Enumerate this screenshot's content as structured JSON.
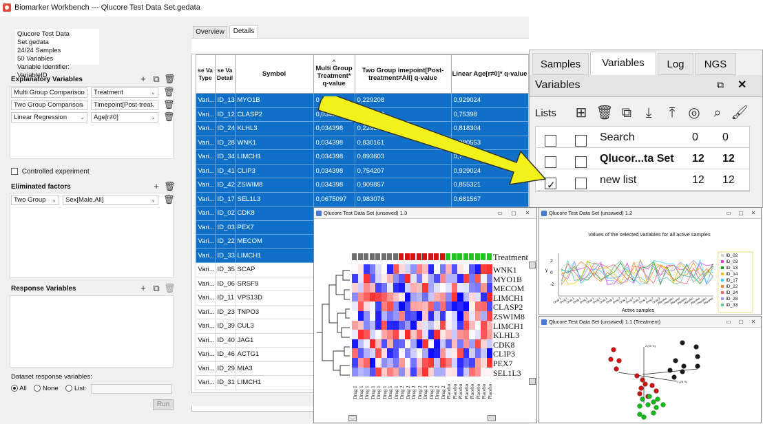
{
  "window": {
    "title": "Biomarker Workbench --- Qlucore Test Data Set.gedata"
  },
  "info": {
    "lines": [
      "Qlucore Test Data Set.gedata",
      "24/24 Samples",
      "50 Variables",
      "Variable Identifier: VariableID"
    ]
  },
  "explanatory": {
    "title": "Explanatory Variables",
    "rows": [
      {
        "test": "Multi Group Comparison",
        "factor": "Treatment"
      },
      {
        "test": "Two Group Comparison",
        "factor": "Timepoint[Post-treat"
      },
      {
        "test": "Linear Regression",
        "factor": "Age[r≠0]"
      }
    ]
  },
  "controlled": {
    "label": "Controlled experiment",
    "checked": false
  },
  "eliminated": {
    "title": "Eliminated factors",
    "test": "Two Group",
    "factor": "Sex[Male,All]"
  },
  "response": {
    "title": "Response Variables"
  },
  "dataset_response": {
    "label": "Dataset response variables:",
    "options": [
      "All",
      "None",
      "List:"
    ],
    "selected": "All"
  },
  "run_label": "Run",
  "tabs": [
    "Overview",
    "Details"
  ],
  "active_tab": "Details",
  "table": {
    "headers": [
      "se Va Type",
      "se Va Detail",
      "Symbol",
      "Multi Group Treatment* q-value",
      "Two Group imepoint[Post-treatment≠All] q-value",
      "Linear Age[r≠0]* q-value"
    ],
    "rows": [
      {
        "type": "Vari...",
        "id": "ID_13",
        "symbol": "MYO1B",
        "q1": "0,034398",
        "q2": "0,229208",
        "q3": "0,929024",
        "sel": true
      },
      {
        "type": "Vari...",
        "id": "ID_12",
        "symbol": "CLASP2",
        "q1": "0,034398",
        "q2": "0,229208",
        "q3": "0,75398",
        "sel": true
      },
      {
        "type": "Vari...",
        "id": "ID_24",
        "symbol": "KLHL3",
        "q1": "0,034398",
        "q2": "0,229208",
        "q3": "0,818304",
        "sel": true
      },
      {
        "type": "Vari...",
        "id": "ID_28",
        "symbol": "WNK1",
        "q1": "0,034398",
        "q2": "0,830161",
        "q3": "0,980553",
        "sel": true
      },
      {
        "type": "Vari...",
        "id": "ID_34",
        "symbol": "LIMCH1",
        "q1": "0,034398",
        "q2": "0,893603",
        "q3": "0,7",
        "sel": true
      },
      {
        "type": "Vari...",
        "id": "ID_41",
        "symbol": "CLIP3",
        "q1": "0,034398",
        "q2": "0,754207",
        "q3": "0,929024",
        "sel": true
      },
      {
        "type": "Vari...",
        "id": "ID_42",
        "symbol": "ZSWIM8",
        "q1": "0,034398",
        "q2": "0,909857",
        "q3": "0,855321",
        "sel": true
      },
      {
        "type": "Vari...",
        "id": "ID_17",
        "symbol": "SEL1L3",
        "q1": "0,0675097",
        "q2": "0,983076",
        "q3": "0,681567",
        "sel": true
      },
      {
        "type": "Vari...",
        "id": "ID_02",
        "symbol": "CDK8",
        "q1": "",
        "q2": "",
        "q3": "",
        "sel": true
      },
      {
        "type": "Vari...",
        "id": "ID_03",
        "symbol": "PEX7",
        "q1": "",
        "q2": "",
        "q3": "",
        "sel": true
      },
      {
        "type": "Vari...",
        "id": "ID_22",
        "symbol": "MECOM",
        "q1": "",
        "q2": "",
        "q3": "",
        "sel": true
      },
      {
        "type": "Vari...",
        "id": "ID_33",
        "symbol": "LIMCH1",
        "q1": "",
        "q2": "",
        "q3": "",
        "sel": true
      },
      {
        "type": "Vari...",
        "id": "ID_35",
        "symbol": "SCAP",
        "q1": "",
        "q2": "",
        "q3": "",
        "sel": false
      },
      {
        "type": "Vari...",
        "id": "ID_06",
        "symbol": "SRSF9",
        "q1": "",
        "q2": "",
        "q3": "",
        "sel": false
      },
      {
        "type": "Vari...",
        "id": "ID_11",
        "symbol": "VPS13D",
        "q1": "",
        "q2": "",
        "q3": "",
        "sel": false
      },
      {
        "type": "Vari...",
        "id": "ID_23",
        "symbol": "TNPO3",
        "q1": "",
        "q2": "",
        "q3": "",
        "sel": false
      },
      {
        "type": "Vari...",
        "id": "ID_39",
        "symbol": "CUL3",
        "q1": "",
        "q2": "",
        "q3": "",
        "sel": false
      },
      {
        "type": "Vari...",
        "id": "ID_40",
        "symbol": "JAG1",
        "q1": "",
        "q2": "",
        "q3": "",
        "sel": false
      },
      {
        "type": "Vari...",
        "id": "ID_46",
        "symbol": "ACTG1",
        "q1": "",
        "q2": "",
        "q3": "",
        "sel": false
      },
      {
        "type": "Vari...",
        "id": "ID_29",
        "symbol": "MIA3",
        "q1": "",
        "q2": "",
        "q3": "",
        "sel": false
      },
      {
        "type": "Vari...",
        "id": "ID_31",
        "symbol": "LIMCH1",
        "q1": "",
        "q2": "",
        "q3": "",
        "sel": false
      }
    ]
  },
  "lists_panel": {
    "tabs": [
      "Samples",
      "Variables",
      "Log",
      "NGS"
    ],
    "active_tab": "Variables",
    "title": "Variables",
    "lists_label": "Lists",
    "icons": [
      "add-list-icon",
      "trash-icon",
      "copy-icon",
      "import-icon",
      "export-icon",
      "venn-icon",
      "search-icon",
      "brush-icon"
    ],
    "rows": [
      {
        "name": "Search",
        "a": "0",
        "b": "0",
        "checked": false,
        "bold": false
      },
      {
        "name": "Qlucor...ta Set",
        "a": "12",
        "b": "12",
        "checked": false,
        "bold": true
      },
      {
        "name": "new list",
        "a": "12",
        "b": "12",
        "checked": true,
        "bold": false
      }
    ]
  },
  "heatmap_window": {
    "title": "Qlucore Test Data Set (unsaved) 1.3",
    "legend_label": "Treatment",
    "genes": [
      "WNK1",
      "MYO1B",
      "MECOM",
      "LIMCH1",
      "CLASP2",
      "ZSWIM8",
      "LIMCH1",
      "KLHL3",
      "CDK8",
      "CLIP3",
      "PEX7",
      "SEL1L3"
    ],
    "samples": [
      "Drug 1",
      "Drug 1",
      "Drug 1",
      "Drug 1",
      "Drug 1",
      "Drug 1",
      "Drug 1",
      "Drug 1",
      "Drug 2",
      "Drug 2",
      "Drug 2",
      "Drug 2",
      "Drug 2",
      "Drug 2",
      "Drug 2",
      "Drug 2",
      "Placebo",
      "Placebo",
      "Placebo",
      "Placebo",
      "Placebo",
      "Placebo",
      "Placebo",
      "Placebo"
    ]
  },
  "line_window": {
    "title": "Qlucore Test Data Set (unsaved) 1.2",
    "chart_title": "Values of the selected variables for all active samples",
    "xlabel": "Active samples",
    "ylabel": "y",
    "yticks": [
      "2",
      "0",
      "-2"
    ],
    "legend": [
      "ID_02",
      "ID_03",
      "ID_13",
      "ID_14",
      "ID_17",
      "ID_22",
      "ID_24",
      "ID_28",
      "ID_33"
    ]
  },
  "pca_window": {
    "title": "Qlucore Test Data Set (unsaved) 1.1 (Treatment)",
    "axis_labels": [
      "2 (20 %)",
      "1 (28 %)"
    ]
  },
  "colors": {
    "selection": "#1070c8",
    "arrow": "#f2f21a",
    "drug1": "#6e6e6e",
    "drug2": "#d41212",
    "placebo": "#22c422"
  }
}
